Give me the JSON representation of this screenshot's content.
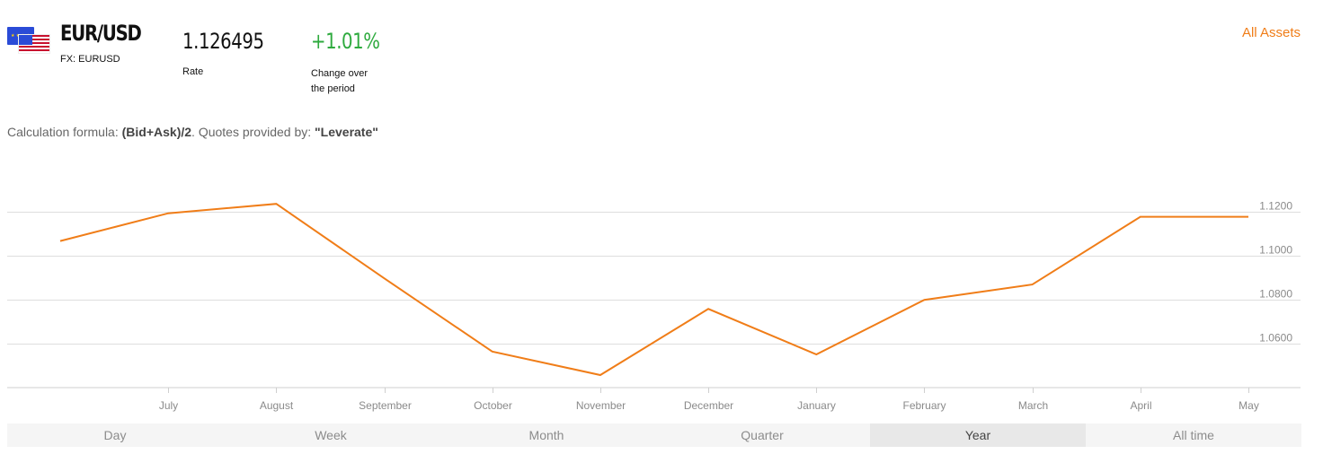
{
  "asset": {
    "symbol": "EUR/USD",
    "sub_label": "FX: EURUSD"
  },
  "rate": {
    "value": "1.126495",
    "label": "Rate"
  },
  "change": {
    "value": "+1.01%",
    "label": "Change over the period"
  },
  "all_assets_link": "All Assets",
  "formula": {
    "prefix": "Calculation formula: ",
    "formula": "(Bid+Ask)/2",
    "middle": ". Quotes provided by: ",
    "provider": "\"Leverate\""
  },
  "colors": {
    "accent": "#f07d18",
    "positive": "#2eaa3e"
  },
  "chart_data": {
    "type": "line",
    "x": [
      "",
      "July",
      "August",
      "September",
      "October",
      "November",
      "December",
      "January",
      "February",
      "March",
      "April",
      "May"
    ],
    "xtick_labels": [
      "July",
      "August",
      "September",
      "October",
      "November",
      "December",
      "January",
      "February",
      "March",
      "April",
      "May"
    ],
    "series": [
      {
        "values": [
          1.1067,
          1.1193,
          1.1236,
          1.0897,
          1.0564,
          1.0457,
          1.0758,
          1.0551,
          1.0799,
          1.0869,
          1.1177,
          1.1177
        ]
      }
    ],
    "yticks": [
      1.06,
      1.08,
      1.1,
      1.12
    ],
    "ytick_labels": [
      "1.0600",
      "1.0800",
      "1.1000",
      "1.1200"
    ],
    "ylim": [
      1.04,
      1.12
    ],
    "grid": true,
    "line_color": "#f07d18"
  },
  "periods": [
    {
      "label": "Day",
      "active": false
    },
    {
      "label": "Week",
      "active": false
    },
    {
      "label": "Month",
      "active": false
    },
    {
      "label": "Quarter",
      "active": false
    },
    {
      "label": "Year",
      "active": true
    },
    {
      "label": "All time",
      "active": false
    }
  ]
}
